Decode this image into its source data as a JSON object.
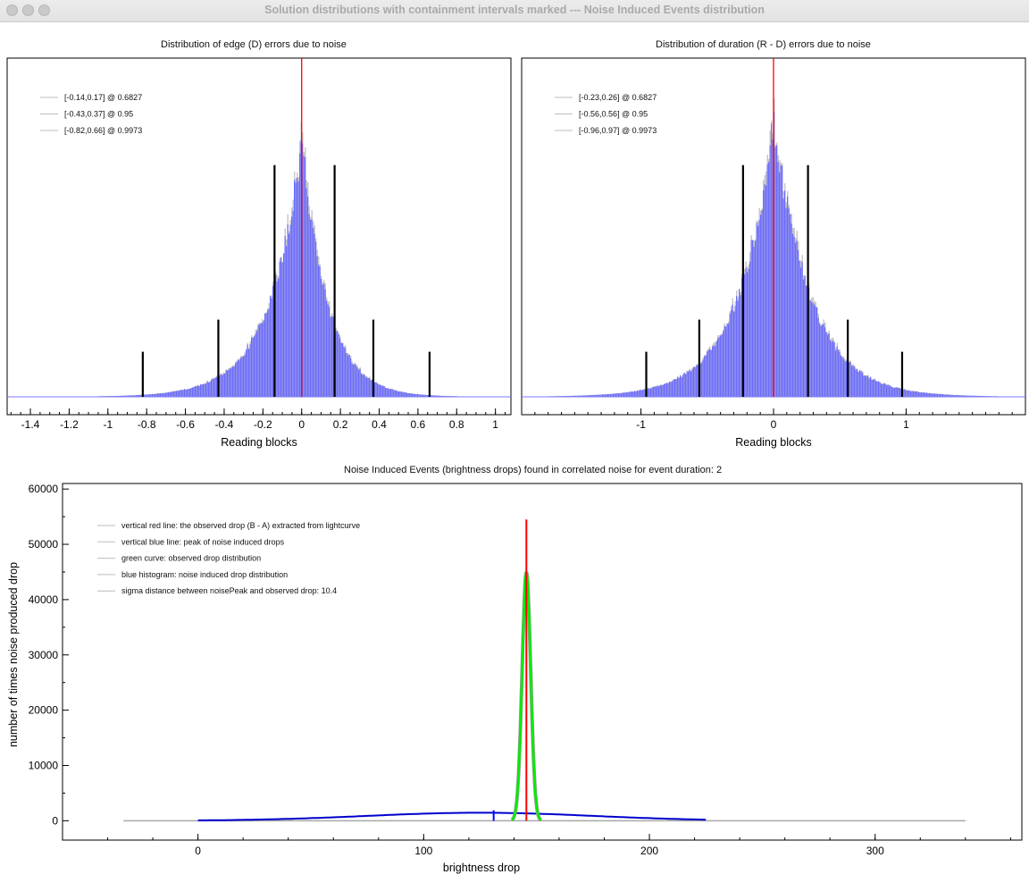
{
  "window": {
    "title": "Solution distributions with containment intervals marked --- Noise Induced Events distribution"
  },
  "chart_data": [
    {
      "type": "bar",
      "title": "Distribution of edge (D) errors due to noise",
      "xlabel": "Reading blocks",
      "ylabel": "",
      "xlim": [
        -1.52,
        1.08
      ],
      "x_ticks": [
        -1.4,
        -1.2,
        -1,
        -0.8,
        -0.6,
        -0.4,
        -0.2,
        0,
        0.2,
        0.4,
        0.6,
        0.8,
        1
      ],
      "x_tick_labels": [
        "-1.4",
        "-1.2",
        "-1",
        "-0.8",
        "-0.6",
        "-0.4",
        "-0.2",
        "0",
        "0.2",
        "0.4",
        "0.6",
        "0.8",
        "1"
      ],
      "legend_position": "top-left",
      "legend": [
        "[-0.14,0.17] @ 0.6827",
        "[-0.43,0.37] @ 0.95",
        "[-0.82,0.66] @ 0.9973"
      ],
      "observed_line_x": 0,
      "intervals": [
        {
          "lo": -0.14,
          "hi": 0.17,
          "level": 0.6827,
          "relative_height": 0.72
        },
        {
          "lo": -0.43,
          "hi": 0.37,
          "level": 0.95,
          "relative_height": 0.24
        },
        {
          "lo": -0.82,
          "hi": 0.66,
          "level": 0.9973,
          "relative_height": 0.14
        }
      ],
      "histogram": {
        "distribution": "laplace-like",
        "peak_x": 0,
        "left_scale": 0.17,
        "right_scale": 0.13,
        "peak_relative_height": 0.8
      },
      "colors": {
        "bars": "#6b6bff",
        "observed": "#ff0000",
        "intervals": "#000000"
      }
    },
    {
      "type": "bar",
      "title": "Distribution of duration (R - D) errors due to noise",
      "xlabel": "Reading blocks",
      "ylabel": "",
      "xlim": [
        -1.9,
        1.9
      ],
      "x_ticks": [
        -1,
        0,
        1
      ],
      "x_tick_labels": [
        "-1",
        "0",
        "1"
      ],
      "legend_position": "top-left",
      "legend": [
        "[-0.23,0.26] @ 0.6827",
        "[-0.56,0.56] @ 0.95",
        "[-0.96,0.97] @ 0.9973"
      ],
      "observed_line_x": 0,
      "intervals": [
        {
          "lo": -0.23,
          "hi": 0.26,
          "level": 0.6827,
          "relative_height": 0.72
        },
        {
          "lo": -0.56,
          "hi": 0.56,
          "level": 0.95,
          "relative_height": 0.24
        },
        {
          "lo": -0.96,
          "hi": 0.97,
          "level": 0.9973,
          "relative_height": 0.14
        }
      ],
      "histogram": {
        "distribution": "laplace-like",
        "peak_x": 0,
        "left_scale": 0.27,
        "right_scale": 0.27,
        "peak_relative_height": 0.86
      },
      "colors": {
        "bars": "#6b6bff",
        "observed": "#ff0000",
        "intervals": "#000000"
      }
    },
    {
      "type": "line",
      "title": "Noise Induced Events (brightness drops) found in correlated noise for event duration: 2",
      "xlabel": "brightness drop",
      "ylabel": "number of times noise produced drop",
      "xlim": [
        -60,
        365
      ],
      "ylim": [
        -3500,
        61000
      ],
      "x_ticks": [
        0,
        100,
        200,
        300
      ],
      "y_ticks": [
        0,
        10000,
        20000,
        30000,
        40000,
        50000,
        60000
      ],
      "legend_position": "top-left",
      "legend": [
        "vertical red line: the observed drop (B - A) extracted from lightcurve",
        "vertical blue line: peak of noise induced drops",
        "green curve: observed drop distribution",
        "blue histogram: noise induced drop distribution",
        "sigma distance between noisePeak and observed drop: 10.4"
      ],
      "series": [
        {
          "name": "noise induced drop distribution",
          "kind": "gaussian",
          "center": 125,
          "sigma": 50,
          "peak": 1450,
          "range": [
            -33,
            340
          ]
        },
        {
          "name": "observed drop distribution",
          "kind": "gaussian",
          "center": 145.5,
          "sigma": 1.9,
          "peak": 45000,
          "range": [
            139,
            152
          ]
        }
      ],
      "observed_drop": {
        "x": 145.5,
        "top": 54500
      },
      "noise_peak": {
        "x": 131,
        "top": 1900
      },
      "colors": {
        "noise": "#0000cc",
        "observed_curve": "#00ee00",
        "observed_line": "#ff0000",
        "noise_peak_line": "#0000ff"
      }
    }
  ]
}
